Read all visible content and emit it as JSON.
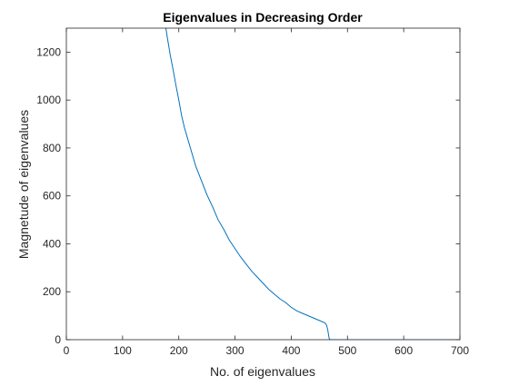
{
  "chart_data": {
    "type": "line",
    "title": "Eigenvalues in Decreasing Order",
    "xlabel": "No. of eigenvalues",
    "ylabel": "Magnetude of eigenvalues",
    "xlim": [
      0,
      700
    ],
    "ylim": [
      0,
      1300
    ],
    "xticks": [
      0,
      100,
      200,
      300,
      400,
      500,
      600,
      700
    ],
    "yticks": [
      0,
      200,
      400,
      600,
      800,
      1000,
      1200
    ],
    "grid": false,
    "line_color": "#0072BD",
    "series": [
      {
        "x": [
          177,
          180,
          185,
          190,
          195,
          200,
          205,
          210,
          215,
          220,
          225,
          230,
          240,
          250,
          260,
          270,
          280,
          290,
          300,
          310,
          320,
          330,
          340,
          350,
          360,
          370,
          380,
          390,
          400,
          410,
          420,
          430,
          440,
          450,
          460,
          463,
          465,
          467,
          468,
          470,
          480,
          500,
          550,
          600,
          650,
          700
        ],
        "y": [
          1300,
          1255,
          1185,
          1125,
          1060,
          1000,
          935,
          885,
          845,
          805,
          765,
          725,
          665,
          605,
          555,
          500,
          460,
          415,
          380,
          345,
          315,
          285,
          260,
          235,
          210,
          190,
          170,
          155,
          135,
          120,
          110,
          100,
          90,
          80,
          70,
          60,
          40,
          10,
          2,
          0,
          0,
          0,
          0,
          0,
          0,
          0
        ]
      }
    ]
  }
}
